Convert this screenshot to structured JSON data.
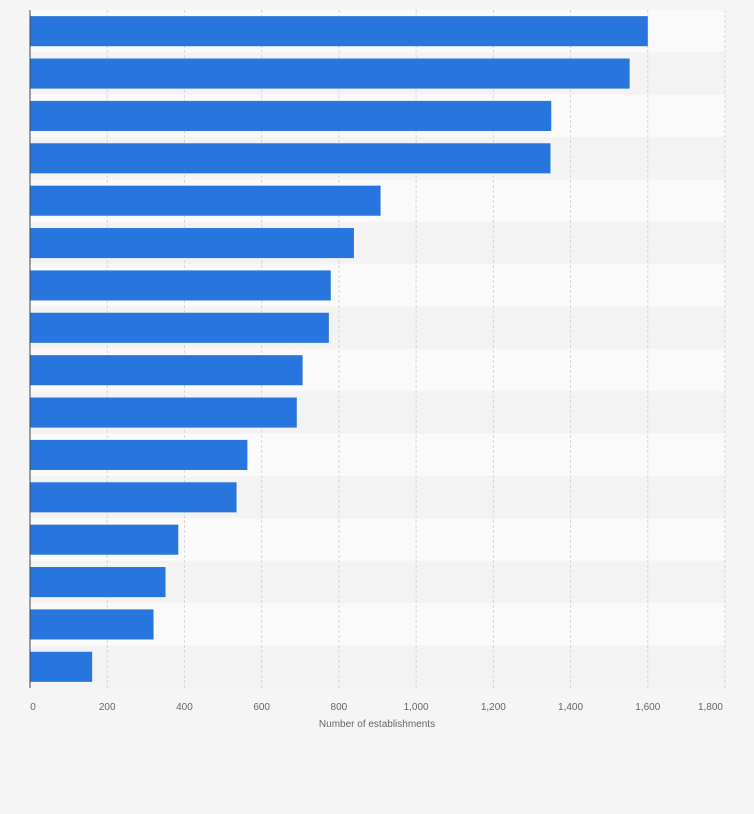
{
  "colors": {
    "bar": "#2876dd",
    "band_light": "#fafafa",
    "band_dark": "#f3f3f3",
    "grid": "#d6d6d6",
    "axis_text": "#666666",
    "axis_line": "#444444"
  },
  "chart_data": {
    "type": "bar",
    "orientation": "horizontal",
    "categories": [
      "",
      "",
      "",
      "",
      "",
      "",
      "",
      "",
      "",
      "",
      "",
      "",
      "",
      "",
      "",
      ""
    ],
    "values": [
      1600,
      1553,
      1350,
      1348,
      908,
      839,
      779,
      774,
      706,
      691,
      563,
      535,
      384,
      351,
      320,
      161
    ],
    "xlabel": "Number of establishments",
    "ylabel": "",
    "xlim": [
      0,
      1800
    ],
    "xticks": [
      0,
      200,
      400,
      600,
      800,
      1000,
      1200,
      1400,
      1600,
      1800
    ],
    "xtick_labels": [
      "0",
      "200",
      "400",
      "600",
      "800",
      "1,000",
      "1,200",
      "1,400",
      "1,600",
      "1,800"
    ],
    "grid": true,
    "legend": "none"
  }
}
